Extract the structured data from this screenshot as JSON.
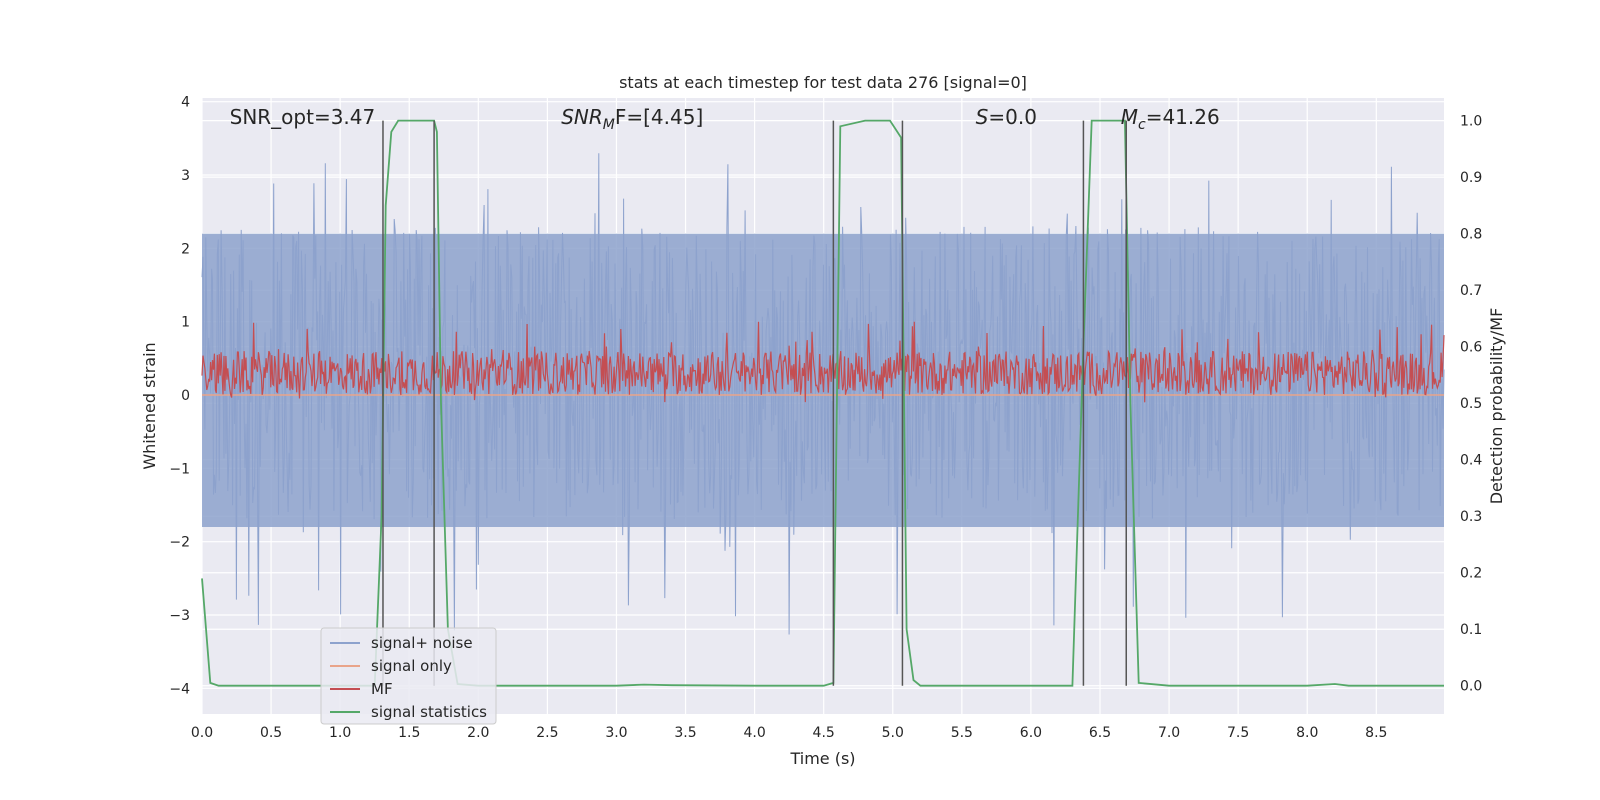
{
  "chart_data": {
    "type": "line",
    "title": "stats at each timestep for test data 276 [signal=0]",
    "xlabel": "Time (s)",
    "ylabel": "Whitened strain",
    "y2label": "Detection probability/MF",
    "xlim": [
      0.0,
      8.99
    ],
    "ylim": [
      -4.35,
      4.05
    ],
    "y2lim": [
      -0.05,
      1.04
    ],
    "xticks": [
      0.0,
      0.5,
      1.0,
      1.5,
      2.0,
      2.5,
      3.0,
      3.5,
      4.0,
      4.5,
      5.0,
      5.5,
      6.0,
      6.5,
      7.0,
      7.5,
      8.0,
      8.5
    ],
    "xtick_labels": [
      "0.0",
      "0.5",
      "1.0",
      "1.5",
      "2.0",
      "2.5",
      "3.0",
      "3.5",
      "4.0",
      "4.5",
      "5.0",
      "5.5",
      "6.0",
      "6.5",
      "7.0",
      "7.5",
      "8.0",
      "8.5"
    ],
    "yticks": [
      -4,
      -3,
      -2,
      -1,
      0,
      1,
      2,
      3,
      4
    ],
    "ytick_labels": [
      "−4",
      "−3",
      "−2",
      "−1",
      "0",
      "1",
      "2",
      "3",
      "4"
    ],
    "y2ticks": [
      0.0,
      0.1,
      0.2,
      0.3,
      0.4,
      0.5,
      0.6,
      0.7,
      0.8,
      0.9,
      1.0
    ],
    "y2tick_labels": [
      "0.0",
      "0.1",
      "0.2",
      "0.3",
      "0.4",
      "0.5",
      "0.6",
      "0.7",
      "0.8",
      "0.9",
      "1.0"
    ],
    "grid": true,
    "legend_position": "lower-left",
    "annotations": [
      {
        "pre": "SNR_opt=3.47",
        "sym": "",
        "sub": "",
        "post": "",
        "x": 0.2
      },
      {
        "pre": "",
        "sym": "SNR",
        "sub": "M",
        "post": "F=[4.45]",
        "x": 2.6
      },
      {
        "pre": "",
        "sym": "S",
        "sub": "",
        "post": "=0.0",
        "x": 5.6
      },
      {
        "pre": "",
        "sym": "M",
        "sub": "c",
        "post": "=41.26",
        "x": 6.65
      }
    ],
    "series": [
      {
        "name": "signal+ noise",
        "color": "#8da2cd",
        "axis": "left",
        "kind": "noise",
        "band": [
          -1.7,
          2.3
        ],
        "peak_range": [
          -3.4,
          3.4
        ]
      },
      {
        "name": "signal only",
        "color": "#e9a48a",
        "axis": "left",
        "kind": "flat",
        "value": 0.0
      },
      {
        "name": "MF",
        "color": "#c44e52",
        "axis": "left",
        "kind": "noise",
        "band": [
          0.0,
          0.6
        ],
        "peak_range": [
          -0.1,
          1.0
        ]
      },
      {
        "name": "signal statistics",
        "color": "#55a868",
        "axis": "right",
        "x": [
          0.0,
          0.06,
          0.12,
          0.5,
          1.0,
          1.25,
          1.3,
          1.33,
          1.37,
          1.42,
          1.55,
          1.68,
          1.7,
          1.73,
          1.78,
          1.85,
          2.0,
          2.5,
          3.0,
          3.2,
          3.4,
          4.0,
          4.5,
          4.57,
          4.62,
          4.8,
          4.98,
          5.06,
          5.1,
          5.15,
          5.2,
          5.5,
          6.0,
          6.3,
          6.38,
          6.44,
          6.6,
          6.68,
          6.72,
          6.78,
          7.0,
          7.5,
          8.0,
          8.2,
          8.3,
          8.99
        ],
        "y": [
          0.19,
          0.005,
          0.0,
          0.0,
          0.0,
          0.0,
          0.3,
          0.85,
          0.98,
          1.0,
          1.0,
          1.0,
          0.98,
          0.5,
          0.1,
          0.003,
          0.0,
          0.0,
          0.0,
          0.002,
          0.001,
          0.0,
          0.0,
          0.005,
          0.99,
          1.0,
          1.0,
          0.97,
          0.1,
          0.01,
          0.0,
          0.0,
          0.0,
          0.0,
          0.6,
          1.0,
          1.0,
          1.0,
          0.5,
          0.005,
          0.0,
          0.0,
          0.0,
          0.003,
          0.0,
          0.0
        ]
      }
    ],
    "vlines": [
      1.31,
      1.68,
      4.57,
      5.07,
      6.38,
      6.69
    ]
  }
}
